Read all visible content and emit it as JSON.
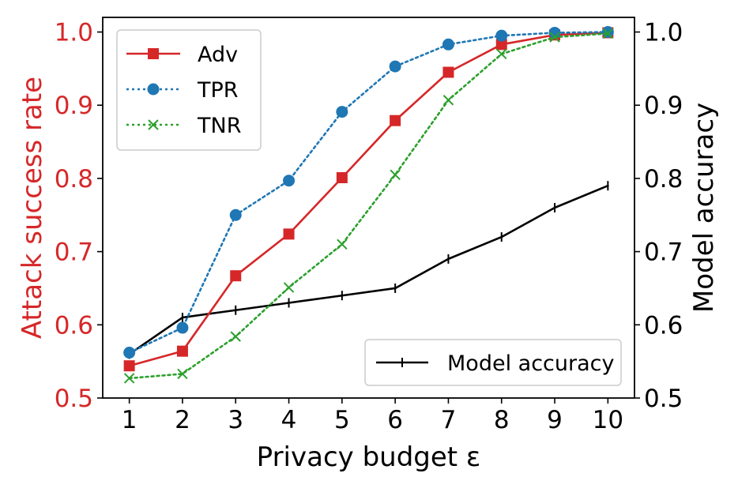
{
  "chart_data": {
    "type": "line",
    "xlabel": "Privacy budget ε",
    "ylabel_left": "Attack success rate",
    "ylabel_right": "Model accuracy",
    "x": [
      1,
      2,
      3,
      4,
      5,
      6,
      7,
      8,
      9,
      10
    ],
    "xlim": [
      0.5,
      10.5
    ],
    "ylim_left": [
      0.5,
      1.02
    ],
    "ylim_right": [
      0.5,
      1.02
    ],
    "xticks": [
      "1",
      "2",
      "3",
      "4",
      "5",
      "6",
      "7",
      "8",
      "9",
      "10"
    ],
    "yticks_left": [
      "0.5",
      "0.6",
      "0.7",
      "0.8",
      "0.9",
      "1.0"
    ],
    "yticks_right": [
      "0.5",
      "0.6",
      "0.7",
      "0.8",
      "0.9",
      "1.0"
    ],
    "colors": {
      "adv": "#d62728",
      "tpr": "#1f77b4",
      "tnr": "#2ca02c",
      "accuracy": "#000000",
      "left_axis_text": "#d62728"
    },
    "series_left": [
      {
        "name": "Adv",
        "marker": "square",
        "linestyle": "solid",
        "values": [
          0.544,
          0.564,
          0.667,
          0.724,
          0.801,
          0.879,
          0.945,
          0.983,
          0.996,
          0.999
        ]
      },
      {
        "name": "TPR",
        "marker": "circle",
        "linestyle": "dotted",
        "values": [
          0.562,
          0.596,
          0.75,
          0.797,
          0.891,
          0.953,
          0.983,
          0.995,
          0.999,
          1.0
        ]
      },
      {
        "name": "TNR",
        "marker": "x",
        "linestyle": "dotted",
        "values": [
          0.527,
          0.533,
          0.584,
          0.651,
          0.71,
          0.805,
          0.907,
          0.97,
          0.993,
          0.998
        ]
      }
    ],
    "series_right": [
      {
        "name": "Model accuracy",
        "marker": "vline",
        "linestyle": "solid",
        "values": [
          0.56,
          0.61,
          0.62,
          0.63,
          0.64,
          0.65,
          0.69,
          0.72,
          0.76,
          0.79
        ]
      }
    ],
    "legend_left": {
      "placement": "top-left",
      "entries": [
        "Adv",
        "TPR",
        "TNR"
      ]
    },
    "legend_right": {
      "placement": "bottom-right",
      "entries": [
        "Model accuracy"
      ]
    }
  }
}
